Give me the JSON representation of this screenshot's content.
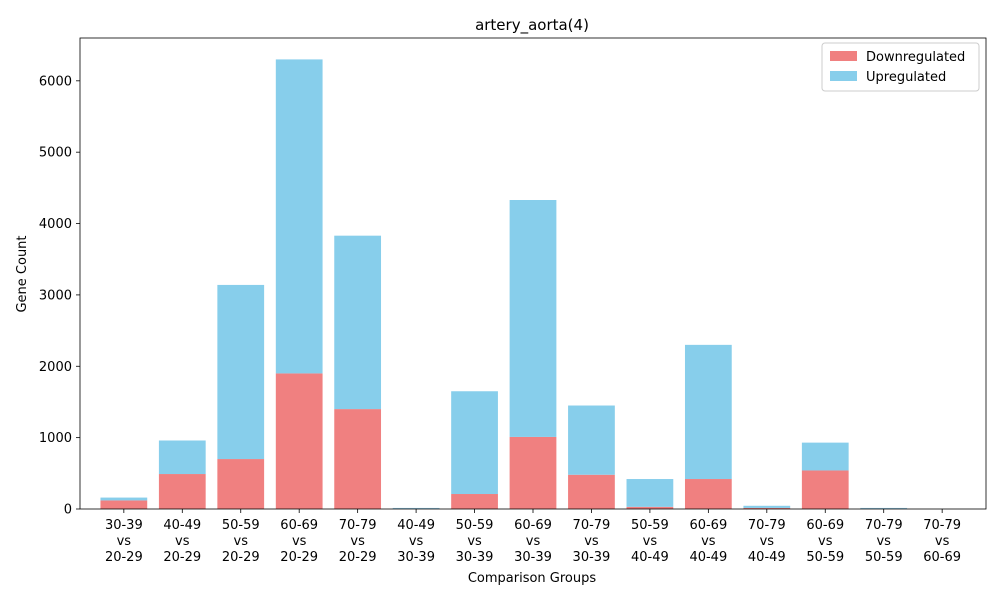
{
  "chart_data": {
    "type": "bar",
    "stacked": true,
    "title": "artery_aorta(4)",
    "xlabel": "Comparison Groups",
    "ylabel": "Gene Count",
    "ylim": [
      0,
      6600
    ],
    "yticks": [
      0,
      1000,
      2000,
      3000,
      4000,
      5000,
      6000
    ],
    "grid": false,
    "legend_position": "top-right",
    "categories": [
      [
        "30-39",
        "vs",
        "20-29"
      ],
      [
        "40-49",
        "vs",
        "20-29"
      ],
      [
        "50-59",
        "vs",
        "20-29"
      ],
      [
        "60-69",
        "vs",
        "20-29"
      ],
      [
        "70-79",
        "vs",
        "20-29"
      ],
      [
        "40-49",
        "vs",
        "30-39"
      ],
      [
        "50-59",
        "vs",
        "30-39"
      ],
      [
        "60-69",
        "vs",
        "30-39"
      ],
      [
        "70-79",
        "vs",
        "30-39"
      ],
      [
        "50-59",
        "vs",
        "40-49"
      ],
      [
        "60-69",
        "vs",
        "40-49"
      ],
      [
        "70-79",
        "vs",
        "40-49"
      ],
      [
        "60-69",
        "vs",
        "50-59"
      ],
      [
        "70-79",
        "vs",
        "50-59"
      ],
      [
        "70-79",
        "vs",
        "60-69"
      ]
    ],
    "series": [
      {
        "name": "Downregulated",
        "color": "#f08080",
        "values": [
          120,
          490,
          700,
          1900,
          1400,
          5,
          210,
          1010,
          480,
          30,
          420,
          15,
          540,
          5,
          0
        ]
      },
      {
        "name": "Upregulated",
        "color": "#87ceeb",
        "values": [
          40,
          470,
          2440,
          4400,
          2430,
          10,
          1440,
          3320,
          970,
          390,
          1880,
          30,
          390,
          10,
          0
        ]
      }
    ]
  }
}
